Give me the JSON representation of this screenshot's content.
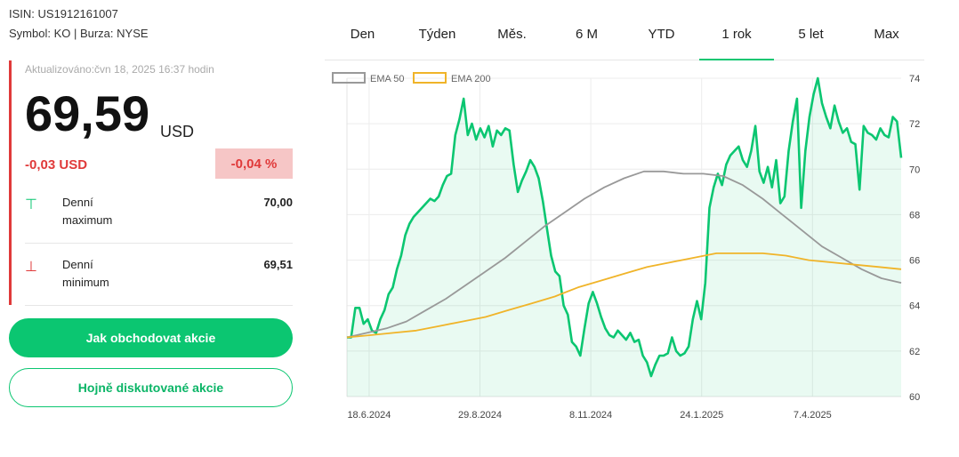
{
  "meta": {
    "isin": "ISIN: US1912161007",
    "symbol": "Symbol: KO | Burza: NYSE"
  },
  "quote": {
    "updated": "Aktualizováno:čvn 18, 2025 16:37 hodin",
    "price": "69,59",
    "currency": "USD",
    "change_abs": "-0,03 USD",
    "change_pct": "-0,04 %"
  },
  "stats": [
    {
      "label": "Denní maximum",
      "value": "70,00",
      "icon": "arrow-up-icon"
    },
    {
      "label": "Denní minimum",
      "value": "69,51",
      "icon": "arrow-down-icon"
    }
  ],
  "buttons": {
    "primary": "Jak obchodovat akcie",
    "secondary": "Hojně diskutované akcie"
  },
  "tabs": [
    "Den",
    "Týden",
    "Měs.",
    "6 M",
    "YTD",
    "1 rok",
    "5 let",
    "Max"
  ],
  "active_tab": "1 rok",
  "colors": {
    "price": "#0bc671",
    "ema50": "#999999",
    "ema200": "#f0b429",
    "down": "#e03a3a"
  },
  "chart_data": {
    "type": "line",
    "x_tick_labels": [
      "18.6.2024",
      "29.8.2024",
      "8.11.2024",
      "24.1.2025",
      "7.4.2025"
    ],
    "y_ticks": [
      60,
      62,
      64,
      66,
      68,
      70,
      72,
      74
    ],
    "ylim": [
      60,
      74
    ],
    "grid": true,
    "legend": {
      "position": "top-left",
      "entries": [
        "EMA 50",
        "EMA 200"
      ]
    },
    "series": [
      {
        "values": [
          62.6,
          62.6,
          63.9,
          63.9,
          63.2,
          63.4,
          62.9,
          62.8,
          63.4,
          63.8,
          64.5,
          64.8,
          65.6,
          66.2,
          67.1,
          67.6,
          67.9,
          68.1,
          68.3,
          68.5,
          68.7,
          68.6,
          68.8,
          69.3,
          69.7,
          69.8,
          71.5,
          72.2,
          73.1,
          71.5,
          72.0,
          71.3,
          71.8,
          71.4,
          71.9,
          71.0,
          71.7,
          71.5,
          71.8,
          71.7,
          70.2,
          69.0,
          69.5,
          69.9,
          70.4,
          70.1,
          69.6,
          68.6,
          67.4,
          66.2,
          65.5,
          65.3,
          64.0,
          63.6,
          62.4,
          62.2,
          61.8,
          63.0,
          64.1,
          64.6,
          64.1,
          63.5,
          63.0,
          62.7,
          62.6,
          62.9,
          62.7,
          62.5,
          62.8,
          62.4,
          62.5,
          61.8,
          61.5,
          60.9,
          61.4,
          61.8,
          61.8,
          61.9,
          62.6,
          62.0,
          61.8,
          61.9,
          62.2,
          63.4,
          64.2,
          63.4,
          65.0,
          68.3,
          69.2,
          69.8,
          69.3,
          70.2,
          70.6,
          70.8,
          71.0,
          70.4,
          70.1,
          70.8,
          71.9,
          69.9,
          69.4,
          70.1,
          69.2,
          70.4,
          68.5,
          68.8,
          70.8,
          72.1,
          73.1,
          68.3,
          70.8,
          72.3,
          73.3,
          74.0,
          72.9,
          72.3,
          71.8,
          72.8,
          72.1,
          71.6,
          71.8,
          71.2,
          71.1,
          69.1,
          71.9,
          71.6,
          71.5,
          71.3,
          71.8,
          71.5,
          71.4,
          72.3,
          72.1,
          70.5
        ]
      },
      {
        "name": "EMA 50",
        "values": [
          62.6,
          62.8,
          63.0,
          63.3,
          63.8,
          64.3,
          64.9,
          65.5,
          66.1,
          66.8,
          67.5,
          68.1,
          68.7,
          69.2,
          69.6,
          69.9,
          69.9,
          69.8,
          69.8,
          69.7,
          69.3,
          68.7,
          68.0,
          67.3,
          66.6,
          66.1,
          65.6,
          65.2,
          65.0
        ]
      },
      {
        "name": "EMA 200",
        "values": [
          62.6,
          62.7,
          62.8,
          62.9,
          63.1,
          63.3,
          63.5,
          63.8,
          64.1,
          64.4,
          64.8,
          65.1,
          65.4,
          65.7,
          65.9,
          66.1,
          66.3,
          66.3,
          66.3,
          66.2,
          66.0,
          65.9,
          65.8,
          65.7,
          65.6
        ]
      }
    ]
  }
}
